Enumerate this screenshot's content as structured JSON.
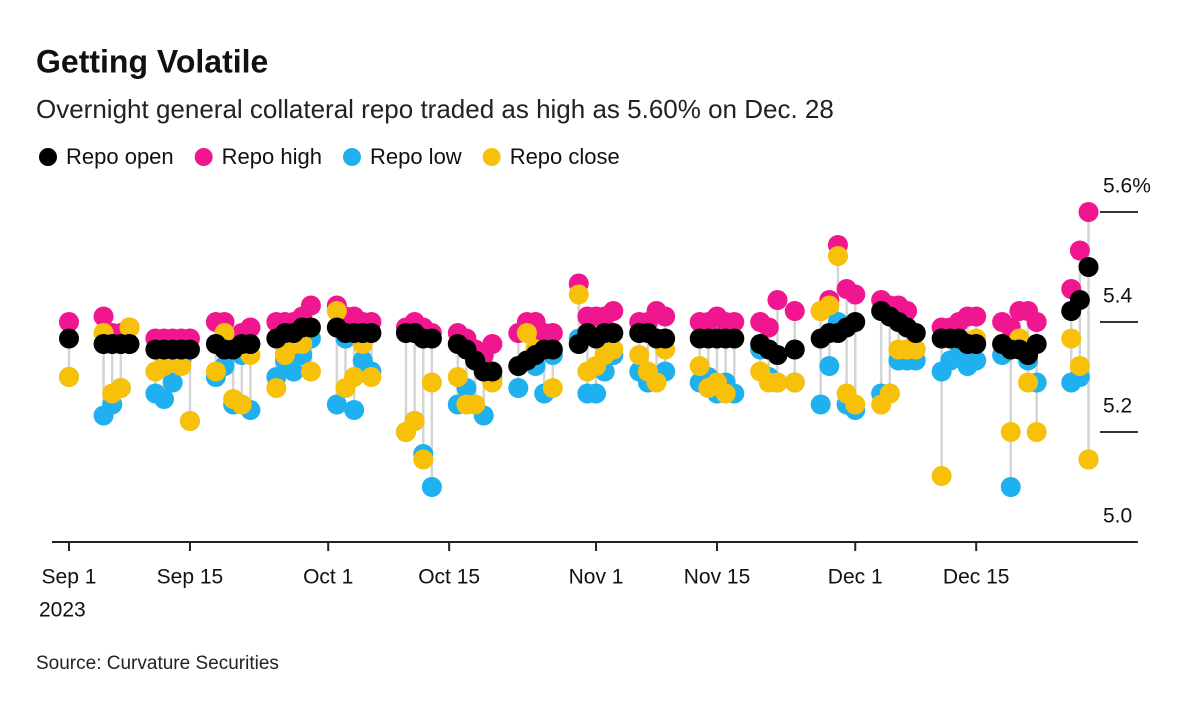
{
  "chart_data": {
    "type": "dot-range",
    "title": "Getting Volatile",
    "subtitle": "Overnight general collateral repo traded as high as 5.60% on Dec. 28",
    "source": "Source: Curvature Securities",
    "x_year": "2023",
    "x": [
      "2023-09-01",
      "2023-09-05",
      "2023-09-06",
      "2023-09-07",
      "2023-09-08",
      "2023-09-11",
      "2023-09-12",
      "2023-09-13",
      "2023-09-14",
      "2023-09-15",
      "2023-09-18",
      "2023-09-19",
      "2023-09-20",
      "2023-09-21",
      "2023-09-22",
      "2023-09-25",
      "2023-09-26",
      "2023-09-27",
      "2023-09-28",
      "2023-09-29",
      "2023-10-02",
      "2023-10-03",
      "2023-10-04",
      "2023-10-05",
      "2023-10-06",
      "2023-10-10",
      "2023-10-11",
      "2023-10-12",
      "2023-10-13",
      "2023-10-16",
      "2023-10-17",
      "2023-10-18",
      "2023-10-19",
      "2023-10-20",
      "2023-10-23",
      "2023-10-24",
      "2023-10-25",
      "2023-10-26",
      "2023-10-27",
      "2023-10-30",
      "2023-10-31",
      "2023-11-01",
      "2023-11-02",
      "2023-11-03",
      "2023-11-06",
      "2023-11-07",
      "2023-11-08",
      "2023-11-09",
      "2023-11-13",
      "2023-11-14",
      "2023-11-15",
      "2023-11-16",
      "2023-11-17",
      "2023-11-20",
      "2023-11-21",
      "2023-11-22",
      "2023-11-24",
      "2023-11-27",
      "2023-11-28",
      "2023-11-29",
      "2023-11-30",
      "2023-12-01",
      "2023-12-04",
      "2023-12-05",
      "2023-12-06",
      "2023-12-07",
      "2023-12-08",
      "2023-12-11",
      "2023-12-12",
      "2023-12-13",
      "2023-12-14",
      "2023-12-15",
      "2023-12-18",
      "2023-12-19",
      "2023-12-20",
      "2023-12-21",
      "2023-12-22",
      "2023-12-26",
      "2023-12-27",
      "2023-12-28"
    ],
    "series": [
      {
        "name": "Repo open",
        "color": "#000000",
        "values": [
          5.37,
          5.36,
          5.36,
          5.36,
          5.36,
          5.35,
          5.35,
          5.35,
          5.35,
          5.35,
          5.36,
          5.35,
          5.35,
          5.36,
          5.36,
          5.37,
          5.38,
          5.38,
          5.39,
          5.39,
          5.39,
          5.38,
          5.38,
          5.38,
          5.38,
          5.38,
          5.38,
          5.37,
          5.37,
          5.36,
          5.35,
          5.33,
          5.31,
          5.31,
          5.32,
          5.33,
          5.34,
          5.35,
          5.35,
          5.36,
          5.38,
          5.37,
          5.38,
          5.38,
          5.38,
          5.38,
          5.37,
          5.37,
          5.37,
          5.37,
          5.37,
          5.37,
          5.37,
          5.36,
          5.35,
          5.34,
          5.35,
          5.37,
          5.38,
          5.38,
          5.39,
          5.4,
          5.42,
          5.41,
          5.4,
          5.39,
          5.38,
          5.37,
          5.37,
          5.37,
          5.36,
          5.36,
          5.36,
          5.35,
          5.35,
          5.34,
          5.36,
          5.42,
          5.44,
          5.5
        ]
      },
      {
        "name": "Repo high",
        "color": "#f0168f",
        "values": [
          5.4,
          5.41,
          5.38,
          5.38,
          5.39,
          5.37,
          5.37,
          5.37,
          5.37,
          5.37,
          5.4,
          5.4,
          5.37,
          5.38,
          5.39,
          5.4,
          5.4,
          5.4,
          5.41,
          5.43,
          5.43,
          5.41,
          5.41,
          5.4,
          5.4,
          5.39,
          5.4,
          5.39,
          5.38,
          5.38,
          5.37,
          5.35,
          5.34,
          5.36,
          5.38,
          5.4,
          5.4,
          5.38,
          5.38,
          5.47,
          5.41,
          5.41,
          5.41,
          5.42,
          5.4,
          5.4,
          5.42,
          5.41,
          5.4,
          5.4,
          5.41,
          5.4,
          5.4,
          5.4,
          5.39,
          5.44,
          5.42,
          5.42,
          5.44,
          5.54,
          5.46,
          5.45,
          5.44,
          5.43,
          5.43,
          5.42,
          5.38,
          5.39,
          5.39,
          5.4,
          5.41,
          5.41,
          5.4,
          5.39,
          5.42,
          5.42,
          5.4,
          5.46,
          5.53,
          5.6
        ]
      },
      {
        "name": "Repo low",
        "color": "#1eb0ef",
        "values": [
          5.3,
          5.23,
          5.25,
          5.28,
          5.36,
          5.27,
          5.26,
          5.29,
          5.33,
          5.22,
          5.3,
          5.32,
          5.25,
          5.34,
          5.24,
          5.3,
          5.33,
          5.31,
          5.34,
          5.37,
          5.25,
          5.37,
          5.24,
          5.33,
          5.31,
          5.2,
          5.22,
          5.16,
          5.1,
          5.25,
          5.28,
          5.25,
          5.23,
          5.3,
          5.28,
          5.33,
          5.32,
          5.27,
          5.34,
          5.37,
          5.27,
          5.27,
          5.31,
          5.34,
          5.31,
          5.29,
          5.3,
          5.31,
          5.29,
          5.3,
          5.27,
          5.29,
          5.27,
          5.35,
          5.3,
          5.29,
          5.29,
          5.25,
          5.32,
          5.4,
          5.25,
          5.24,
          5.27,
          5.27,
          5.33,
          5.33,
          5.33,
          5.31,
          5.33,
          5.34,
          5.32,
          5.33,
          5.34,
          5.1,
          5.35,
          5.33,
          5.29,
          5.29,
          5.3,
          5.15
        ]
      },
      {
        "name": "Repo close",
        "color": "#f7c10a",
        "values": [
          5.3,
          5.38,
          5.27,
          5.28,
          5.39,
          5.31,
          5.32,
          5.35,
          5.32,
          5.22,
          5.31,
          5.38,
          5.26,
          5.25,
          5.34,
          5.28,
          5.34,
          5.36,
          5.36,
          5.31,
          5.42,
          5.28,
          5.3,
          5.36,
          5.3,
          5.2,
          5.22,
          5.15,
          5.29,
          5.3,
          5.25,
          5.25,
          5.31,
          5.29,
          5.32,
          5.38,
          5.35,
          5.35,
          5.28,
          5.45,
          5.31,
          5.32,
          5.34,
          5.35,
          5.34,
          5.31,
          5.29,
          5.35,
          5.32,
          5.28,
          5.29,
          5.27,
          5.37,
          5.31,
          5.29,
          5.29,
          5.29,
          5.42,
          5.43,
          5.52,
          5.27,
          5.25,
          5.25,
          5.27,
          5.35,
          5.35,
          5.35,
          5.12,
          5.37,
          5.37,
          5.36,
          5.37,
          5.36,
          5.2,
          5.37,
          5.29,
          5.2,
          5.37,
          5.32,
          5.15
        ]
      }
    ],
    "xticks": [
      {
        "value": "2023-09-01",
        "label": "Sep 1"
      },
      {
        "value": "2023-09-15",
        "label": "Sep 15"
      },
      {
        "value": "2023-10-01",
        "label": "Oct 1"
      },
      {
        "value": "2023-10-15",
        "label": "Oct 15"
      },
      {
        "value": "2023-11-01",
        "label": "Nov 1"
      },
      {
        "value": "2023-11-15",
        "label": "Nov 15"
      },
      {
        "value": "2023-12-01",
        "label": "Dec 1"
      },
      {
        "value": "2023-12-15",
        "label": "Dec 15"
      }
    ],
    "ylim": [
      5.0,
      5.6
    ],
    "yticks": [
      {
        "value": 5.0,
        "label": "5.0"
      },
      5.2,
      5.4,
      {
        "value": 5.6,
        "label": "5.6%"
      }
    ]
  }
}
